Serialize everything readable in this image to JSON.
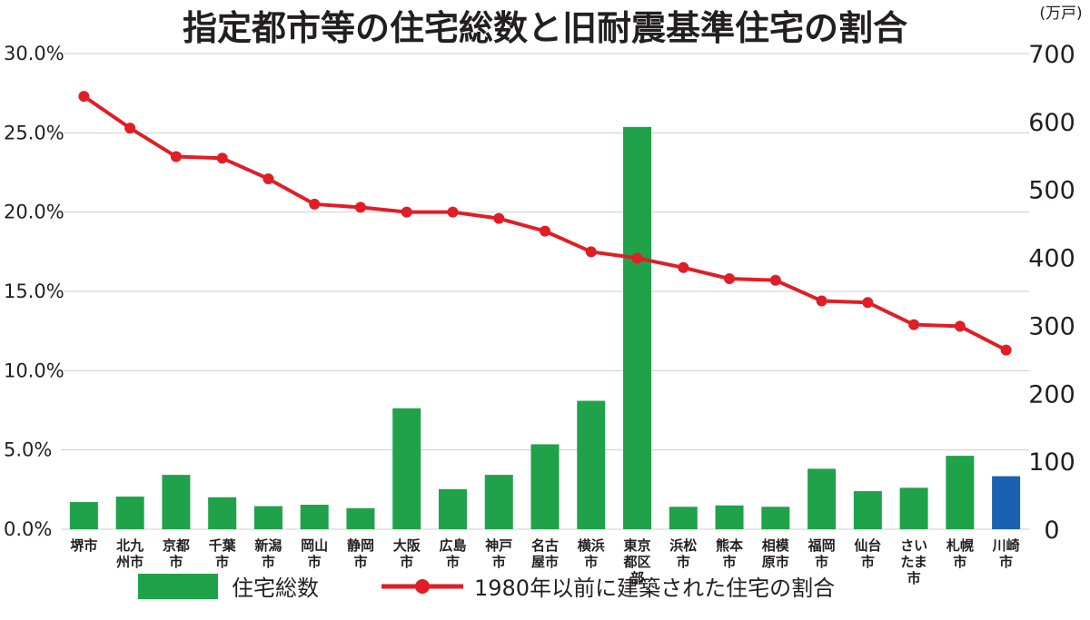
{
  "chart_data": {
    "type": "bar",
    "title": "指定都市等の住宅総数と旧耐震基準住宅の割合",
    "categories": [
      "堺市",
      "北九州市",
      "京都市",
      "千葉市",
      "新潟市",
      "岡山市",
      "静岡市",
      "大阪市",
      "広島市",
      "神戸市",
      "名古屋市",
      "横浜市",
      "東京都区部",
      "浜松市",
      "熊本市",
      "相模原市",
      "福岡市",
      "仙台市",
      "さいたま市",
      "札幌市",
      "川崎市"
    ],
    "category_lines": [
      [
        "堺市"
      ],
      [
        "北九",
        "州市"
      ],
      [
        "京都",
        "市"
      ],
      [
        "千葉",
        "市"
      ],
      [
        "新潟",
        "市"
      ],
      [
        "岡山",
        "市"
      ],
      [
        "静岡",
        "市"
      ],
      [
        "大阪",
        "市"
      ],
      [
        "広島",
        "市"
      ],
      [
        "神戸",
        "市"
      ],
      [
        "名古",
        "屋市"
      ],
      [
        "横浜",
        "市"
      ],
      [
        "東京",
        "都区",
        "部"
      ],
      [
        "浜松",
        "市"
      ],
      [
        "熊本",
        "市"
      ],
      [
        "相模",
        "原市"
      ],
      [
        "福岡",
        "市"
      ],
      [
        "仙台",
        "市"
      ],
      [
        "さい",
        "たま",
        "市"
      ],
      [
        "札幌",
        "市"
      ],
      [
        "川崎",
        "市"
      ]
    ],
    "series": [
      {
        "name": "住宅総数",
        "kind": "bar",
        "axis": "right",
        "color": "#1fa24a",
        "highlight": {
          "index": 20,
          "color": "#1a62b0"
        },
        "values": [
          40,
          48,
          80,
          47,
          34,
          36,
          31,
          178,
          59,
          80,
          125,
          189,
          592,
          33,
          35,
          33,
          89,
          56,
          61,
          108,
          78
        ]
      },
      {
        "name": "1980年以前に建築された住宅の割合",
        "kind": "line",
        "axis": "left",
        "color": "#e01e26",
        "values": [
          27.3,
          25.3,
          23.5,
          23.4,
          22.1,
          20.5,
          20.3,
          20.0,
          20.0,
          19.6,
          18.8,
          17.5,
          17.1,
          16.5,
          15.8,
          15.7,
          14.4,
          14.3,
          12.9,
          12.8,
          11.3
        ]
      }
    ],
    "y_left": {
      "ylim": [
        0,
        30
      ],
      "ticks": [
        "0.0%",
        "5.0%",
        "10.0%",
        "15.0%",
        "20.0%",
        "25.0%",
        "30.0%"
      ]
    },
    "y_right": {
      "ylim": [
        0,
        700
      ],
      "unit": "(万戸)",
      "ticks": [
        "0",
        "100",
        "200",
        "300",
        "400",
        "500",
        "600",
        "700"
      ]
    },
    "grid": true,
    "legend": "bottom"
  }
}
